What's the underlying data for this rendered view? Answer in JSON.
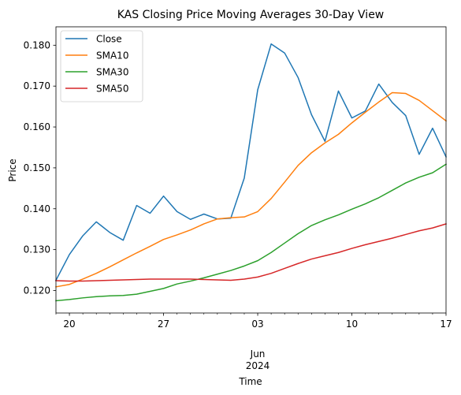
{
  "chart_data": {
    "type": "line",
    "title": "KAS Closing Price Moving Averages 30-Day View",
    "xlabel": "Time",
    "ylabel": "Price",
    "x": [
      "2024-05-19",
      "2024-05-20",
      "2024-05-21",
      "2024-05-22",
      "2024-05-23",
      "2024-05-24",
      "2024-05-25",
      "2024-05-26",
      "2024-05-27",
      "2024-05-28",
      "2024-05-29",
      "2024-05-30",
      "2024-05-31",
      "2024-06-01",
      "2024-06-02",
      "2024-06-03",
      "2024-06-04",
      "2024-06-05",
      "2024-06-06",
      "2024-06-07",
      "2024-06-08",
      "2024-06-09",
      "2024-06-10",
      "2024-06-11",
      "2024-06-12",
      "2024-06-13",
      "2024-06-14",
      "2024-06-15",
      "2024-06-16",
      "2024-06-17"
    ],
    "xlim": [
      "2024-05-19",
      "2024-06-17"
    ],
    "ylim": [
      0.1145,
      0.1845
    ],
    "yticks": [
      0.12,
      0.13,
      0.14,
      0.15,
      0.16,
      0.17,
      0.18
    ],
    "ytick_labels": [
      "0.120",
      "0.130",
      "0.140",
      "0.150",
      "0.160",
      "0.170",
      "0.180"
    ],
    "xticks": [
      {
        "date": "2024-05-20",
        "label": "20"
      },
      {
        "date": "2024-05-27",
        "label": "27"
      },
      {
        "date": "2024-06-03",
        "label": "03"
      },
      {
        "date": "2024-06-10",
        "label": "10"
      },
      {
        "date": "2024-06-17",
        "label": "17"
      }
    ],
    "xtick_secondary": {
      "month": "Jun",
      "year": "2024",
      "under": "2024-06-03"
    },
    "grid": false,
    "legend_position": "top-left",
    "series": [
      {
        "name": "Close",
        "color": "#1f77b4",
        "values": [
          0.1225,
          0.1288,
          0.1334,
          0.1368,
          0.1342,
          0.1323,
          0.1408,
          0.1389,
          0.1431,
          0.1393,
          0.1374,
          0.1387,
          0.1375,
          0.1377,
          0.1475,
          0.1691,
          0.1803,
          0.1781,
          0.1721,
          0.163,
          0.1565,
          0.1688,
          0.1622,
          0.1639,
          0.1705,
          0.166,
          0.1628,
          0.1533,
          0.1597,
          0.1527
        ]
      },
      {
        "name": "SMA10",
        "color": "#ff7f0e",
        "values": [
          0.1209,
          0.1215,
          0.1228,
          0.1242,
          0.1258,
          0.1275,
          0.1292,
          0.1308,
          0.1325,
          0.1336,
          0.1348,
          0.1363,
          0.1375,
          0.1378,
          0.138,
          0.1393,
          0.1425,
          0.1465,
          0.1506,
          0.1537,
          0.1561,
          0.1582,
          0.161,
          0.1636,
          0.1661,
          0.1684,
          0.1682,
          0.1665,
          0.164,
          0.1615
        ]
      },
      {
        "name": "SMA30",
        "color": "#2ca02c",
        "values": [
          0.1175,
          0.1178,
          0.1182,
          0.1185,
          0.1187,
          0.1188,
          0.1191,
          0.1198,
          0.1205,
          0.1216,
          0.1223,
          0.1231,
          0.124,
          0.1249,
          0.126,
          0.1273,
          0.1293,
          0.1316,
          0.1339,
          0.1359,
          0.1373,
          0.1385,
          0.1399,
          0.1412,
          0.1427,
          0.1445,
          0.1463,
          0.1477,
          0.1488,
          0.1509
        ]
      },
      {
        "name": "SMA50",
        "color": "#d62728",
        "values": [
          0.1224,
          0.1223,
          0.1223,
          0.1224,
          0.1225,
          0.1226,
          0.1227,
          0.1228,
          0.1228,
          0.1228,
          0.1228,
          0.1227,
          0.1226,
          0.1225,
          0.1228,
          0.1233,
          0.1242,
          0.1254,
          0.1266,
          0.1277,
          0.1285,
          0.1293,
          0.1303,
          0.1312,
          0.132,
          0.1328,
          0.1337,
          0.1346,
          0.1353,
          0.1363
        ]
      }
    ]
  }
}
